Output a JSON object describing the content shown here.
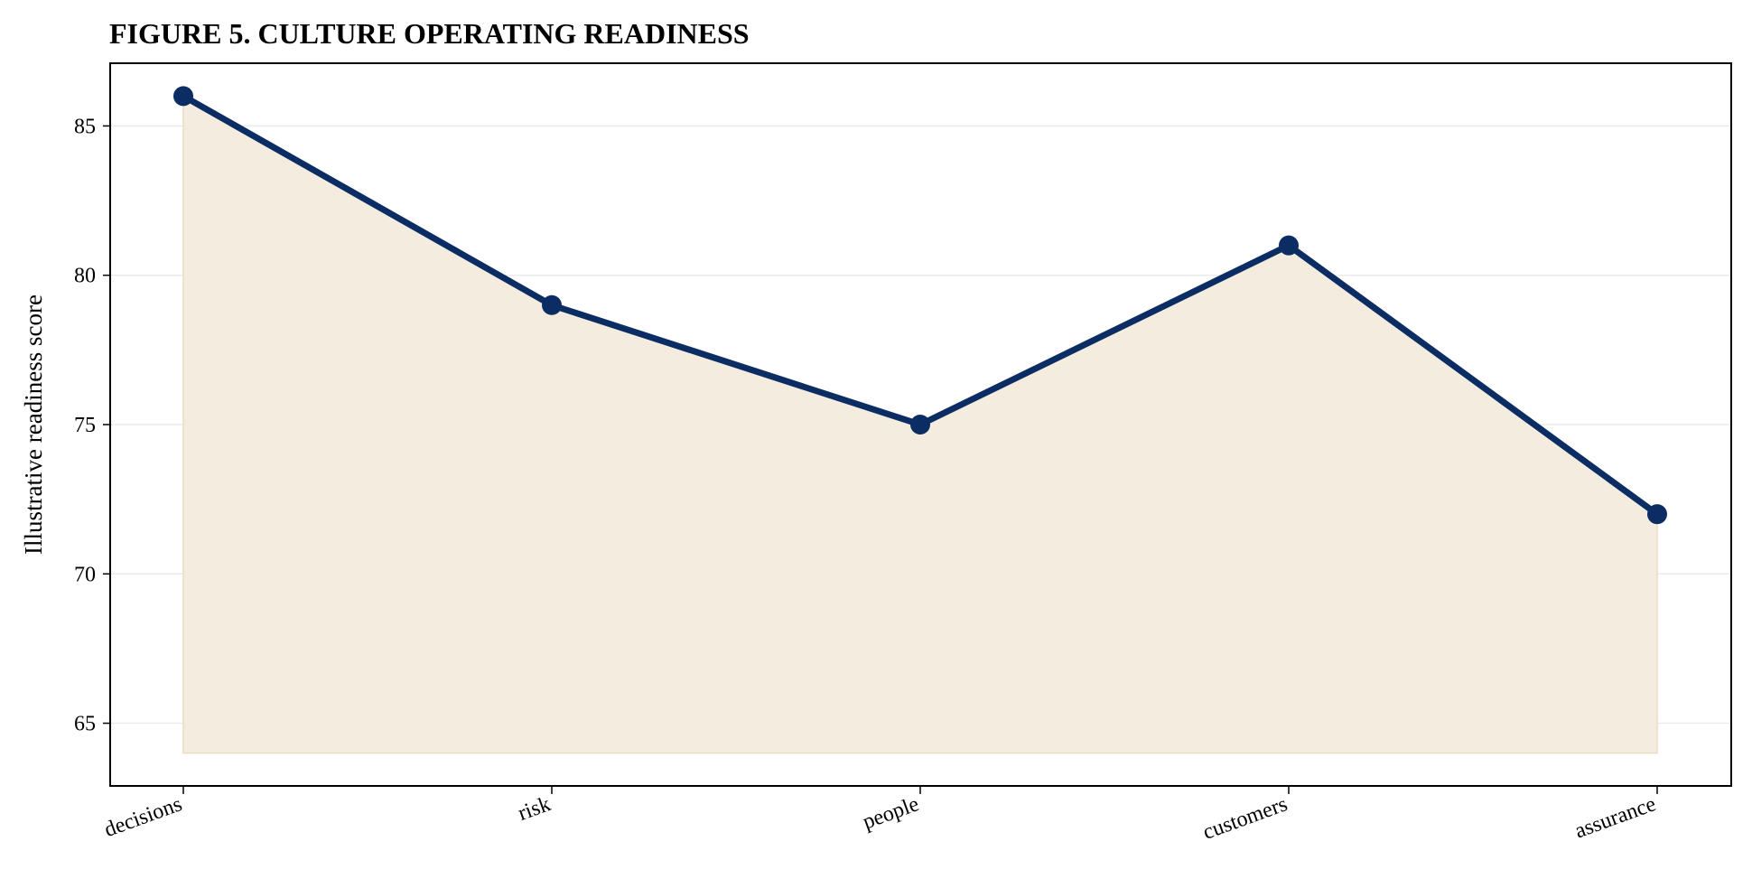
{
  "chart_data": {
    "type": "area",
    "title": "FIGURE 5. CULTURE OPERATING READINESS",
    "xlabel": "",
    "ylabel": "Illustrative readiness score",
    "categories": [
      "decisions",
      "risk",
      "people",
      "customers",
      "assurance"
    ],
    "series": [
      {
        "values": [
          86,
          79,
          75,
          81,
          72
        ]
      }
    ],
    "area_baseline": 64,
    "ylim": [
      62.9,
      87.1
    ],
    "yticks": [
      65,
      70,
      75,
      80,
      85
    ],
    "grid": "horizontal",
    "legend": "none",
    "colors": {
      "line": "#0b2d63",
      "fill": "#f3ecdf",
      "fill_edge": "#eadcbf",
      "grid": "#ebebeb"
    }
  }
}
